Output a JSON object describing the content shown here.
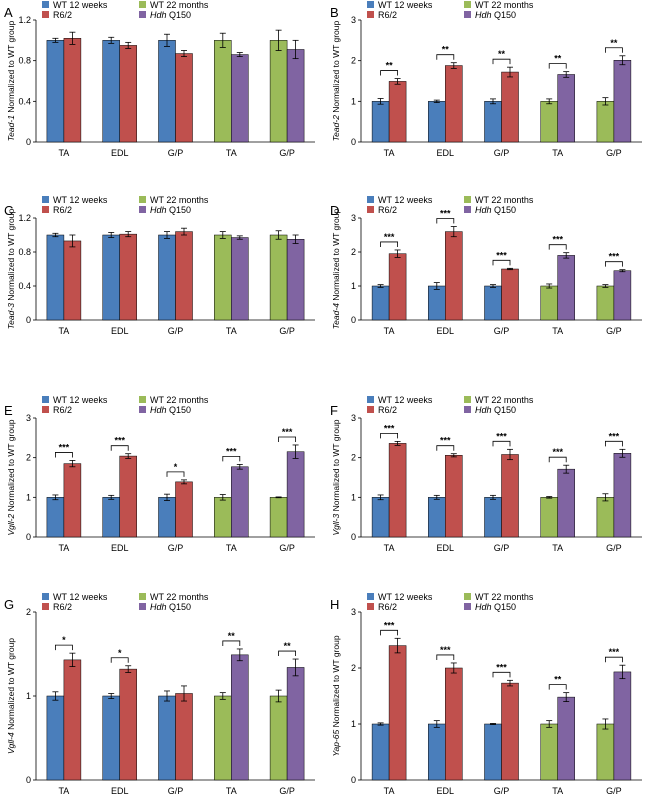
{
  "legend": {
    "items": [
      {
        "label": "WT 12 weeks",
        "color": "#4a7ebb"
      },
      {
        "label": "R6/2",
        "color": "#c0504d"
      },
      {
        "label": "WT 22 months",
        "color": "#9bbb59"
      },
      {
        "label_italic": "Hdh",
        "label_rest": " Q150",
        "color": "#8064a2"
      }
    ]
  },
  "colors": {
    "wt12": "#4a7ebb",
    "r62": "#c0504d",
    "wt22": "#9bbb59",
    "hdh": "#8064a2"
  },
  "chart_data": [
    {
      "letter": "A",
      "type": "bar",
      "gene": "Tead-1",
      "ylabel_rest": " Normalized to WT group",
      "categories": [
        "TA",
        "EDL",
        "G/P",
        "TA",
        "G/P"
      ],
      "ylim": [
        0,
        1.2
      ],
      "yticks": [
        "0",
        "0.4",
        "0.8",
        "1.2"
      ],
      "ytick_values": [
        0,
        0.4,
        0.8,
        1.2
      ],
      "groups": [
        {
          "control": 1.0,
          "control_err": 0.02,
          "disease": 1.02,
          "disease_err": 0.06,
          "sig": ""
        },
        {
          "control": 1.0,
          "control_err": 0.03,
          "disease": 0.95,
          "disease_err": 0.03,
          "sig": ""
        },
        {
          "control": 1.0,
          "control_err": 0.06,
          "disease": 0.87,
          "disease_err": 0.03,
          "sig": ""
        },
        {
          "control": 1.0,
          "control_err": 0.07,
          "disease": 0.86,
          "disease_err": 0.02,
          "sig": ""
        },
        {
          "control": 1.0,
          "control_err": 0.1,
          "disease": 0.91,
          "disease_err": 0.09,
          "sig": ""
        }
      ]
    },
    {
      "letter": "B",
      "type": "bar",
      "gene": "Tead-2",
      "ylabel_rest": " Normalized to WT group",
      "categories": [
        "TA",
        "EDL",
        "G/P",
        "TA",
        "G/P"
      ],
      "ylim": [
        0,
        3
      ],
      "yticks": [
        "0",
        "1",
        "2",
        "3"
      ],
      "ytick_values": [
        0,
        1,
        2,
        3
      ],
      "groups": [
        {
          "control": 1.0,
          "control_err": 0.07,
          "disease": 1.49,
          "disease_err": 0.07,
          "sig": "**"
        },
        {
          "control": 1.0,
          "control_err": 0.03,
          "disease": 1.88,
          "disease_err": 0.07,
          "sig": "**"
        },
        {
          "control": 1.0,
          "control_err": 0.06,
          "disease": 1.72,
          "disease_err": 0.12,
          "sig": "**"
        },
        {
          "control": 1.0,
          "control_err": 0.06,
          "disease": 1.66,
          "disease_err": 0.07,
          "sig": "**"
        },
        {
          "control": 1.0,
          "control_err": 0.09,
          "disease": 2.01,
          "disease_err": 0.11,
          "sig": "**"
        }
      ]
    },
    {
      "letter": "C",
      "type": "bar",
      "gene": "Tead-3",
      "ylabel_rest": " Normalized to WT group",
      "categories": [
        "TA",
        "EDL",
        "G/P",
        "TA",
        "G/P"
      ],
      "ylim": [
        0,
        1.2
      ],
      "yticks": [
        "0",
        "0.4",
        "0.8",
        "1.2"
      ],
      "ytick_values": [
        0,
        0.4,
        0.8,
        1.2
      ],
      "groups": [
        {
          "control": 1.0,
          "control_err": 0.02,
          "disease": 0.93,
          "disease_err": 0.07,
          "sig": ""
        },
        {
          "control": 1.0,
          "control_err": 0.03,
          "disease": 1.01,
          "disease_err": 0.03,
          "sig": ""
        },
        {
          "control": 1.0,
          "control_err": 0.04,
          "disease": 1.04,
          "disease_err": 0.04,
          "sig": ""
        },
        {
          "control": 1.0,
          "control_err": 0.04,
          "disease": 0.97,
          "disease_err": 0.02,
          "sig": ""
        },
        {
          "control": 1.0,
          "control_err": 0.05,
          "disease": 0.95,
          "disease_err": 0.05,
          "sig": ""
        }
      ]
    },
    {
      "letter": "D",
      "type": "bar",
      "gene": "Tead-4",
      "ylabel_rest": " Normalized to WT group",
      "categories": [
        "TA",
        "EDL",
        "G/P",
        "TA",
        "G/P"
      ],
      "ylim": [
        0,
        3
      ],
      "yticks": [
        "0",
        "1",
        "2",
        "3"
      ],
      "ytick_values": [
        0,
        1,
        2,
        3
      ],
      "groups": [
        {
          "control": 1.0,
          "control_err": 0.04,
          "disease": 1.95,
          "disease_err": 0.11,
          "sig": "***"
        },
        {
          "control": 1.0,
          "control_err": 0.1,
          "disease": 2.6,
          "disease_err": 0.15,
          "sig": "***"
        },
        {
          "control": 1.0,
          "control_err": 0.04,
          "disease": 1.5,
          "disease_err": 0.02,
          "sig": "***"
        },
        {
          "control": 1.0,
          "control_err": 0.06,
          "disease": 1.9,
          "disease_err": 0.08,
          "sig": "***"
        },
        {
          "control": 1.0,
          "control_err": 0.04,
          "disease": 1.45,
          "disease_err": 0.03,
          "sig": "***"
        }
      ]
    },
    {
      "letter": "E",
      "type": "bar",
      "gene": "Vgll-2",
      "ylabel_rest": " Normalized to WT group",
      "categories": [
        "TA",
        "EDL",
        "G/P",
        "TA",
        "G/P"
      ],
      "ylim": [
        0,
        3
      ],
      "yticks": [
        "0",
        "1",
        "2",
        "3"
      ],
      "ytick_values": [
        0,
        1,
        2,
        3
      ],
      "groups": [
        {
          "control": 1.0,
          "control_err": 0.06,
          "disease": 1.85,
          "disease_err": 0.08,
          "sig": "***"
        },
        {
          "control": 1.0,
          "control_err": 0.05,
          "disease": 2.04,
          "disease_err": 0.06,
          "sig": "***"
        },
        {
          "control": 1.0,
          "control_err": 0.08,
          "disease": 1.39,
          "disease_err": 0.05,
          "sig": "*"
        },
        {
          "control": 1.0,
          "control_err": 0.07,
          "disease": 1.77,
          "disease_err": 0.06,
          "sig": "***"
        },
        {
          "control": 1.0,
          "control_err": 0.01,
          "disease": 2.15,
          "disease_err": 0.17,
          "sig": "***"
        }
      ]
    },
    {
      "letter": "F",
      "type": "bar",
      "gene": "Vgll-3",
      "ylabel_rest": " Normalized to WT group",
      "categories": [
        "TA",
        "EDL",
        "G/P",
        "TA",
        "G/P"
      ],
      "ylim": [
        0,
        3
      ],
      "yticks": [
        "0",
        "1",
        "2",
        "3"
      ],
      "ytick_values": [
        0,
        1,
        2,
        3
      ],
      "groups": [
        {
          "control": 1.0,
          "control_err": 0.06,
          "disease": 2.36,
          "disease_err": 0.05,
          "sig": "***"
        },
        {
          "control": 1.0,
          "control_err": 0.05,
          "disease": 2.06,
          "disease_err": 0.04,
          "sig": "***"
        },
        {
          "control": 1.0,
          "control_err": 0.05,
          "disease": 2.08,
          "disease_err": 0.13,
          "sig": "***"
        },
        {
          "control": 1.0,
          "control_err": 0.02,
          "disease": 1.71,
          "disease_err": 0.1,
          "sig": "***"
        },
        {
          "control": 1.0,
          "control_err": 0.09,
          "disease": 2.11,
          "disease_err": 0.1,
          "sig": "***"
        }
      ]
    },
    {
      "letter": "G",
      "type": "bar",
      "gene": "Vgll-4",
      "ylabel_rest": " Normalized to WT group",
      "categories": [
        "TA",
        "EDL",
        "G/P",
        "TA",
        "G/P"
      ],
      "ylim": [
        0,
        2
      ],
      "yticks": [
        "0",
        "1",
        "2"
      ],
      "ytick_values": [
        0,
        1,
        2
      ],
      "groups": [
        {
          "control": 1.0,
          "control_err": 0.05,
          "disease": 1.43,
          "disease_err": 0.08,
          "sig": "*"
        },
        {
          "control": 1.0,
          "control_err": 0.03,
          "disease": 1.32,
          "disease_err": 0.04,
          "sig": "*"
        },
        {
          "control": 1.0,
          "control_err": 0.06,
          "disease": 1.03,
          "disease_err": 0.09,
          "sig": ""
        },
        {
          "control": 1.0,
          "control_err": 0.04,
          "disease": 1.49,
          "disease_err": 0.07,
          "sig": "**"
        },
        {
          "control": 1.0,
          "control_err": 0.07,
          "disease": 1.34,
          "disease_err": 0.1,
          "sig": "**"
        }
      ]
    },
    {
      "letter": "H",
      "type": "bar",
      "gene": "Yap-65",
      "ylabel_rest": " Normalized to WT group",
      "categories": [
        "TA",
        "EDL",
        "G/P",
        "TA",
        "G/P"
      ],
      "ylim": [
        0,
        3
      ],
      "yticks": [
        "0",
        "1",
        "2",
        "3"
      ],
      "ytick_values": [
        0,
        1,
        2,
        3
      ],
      "groups": [
        {
          "control": 1.0,
          "control_err": 0.02,
          "disease": 2.4,
          "disease_err": 0.13,
          "sig": "***"
        },
        {
          "control": 1.0,
          "control_err": 0.06,
          "disease": 2.0,
          "disease_err": 0.09,
          "sig": "***"
        },
        {
          "control": 1.0,
          "control_err": 0.01,
          "disease": 1.73,
          "disease_err": 0.05,
          "sig": "***"
        },
        {
          "control": 1.0,
          "control_err": 0.06,
          "disease": 1.48,
          "disease_err": 0.08,
          "sig": "**"
        },
        {
          "control": 1.0,
          "control_err": 0.09,
          "disease": 1.93,
          "disease_err": 0.12,
          "sig": "***"
        }
      ]
    }
  ]
}
